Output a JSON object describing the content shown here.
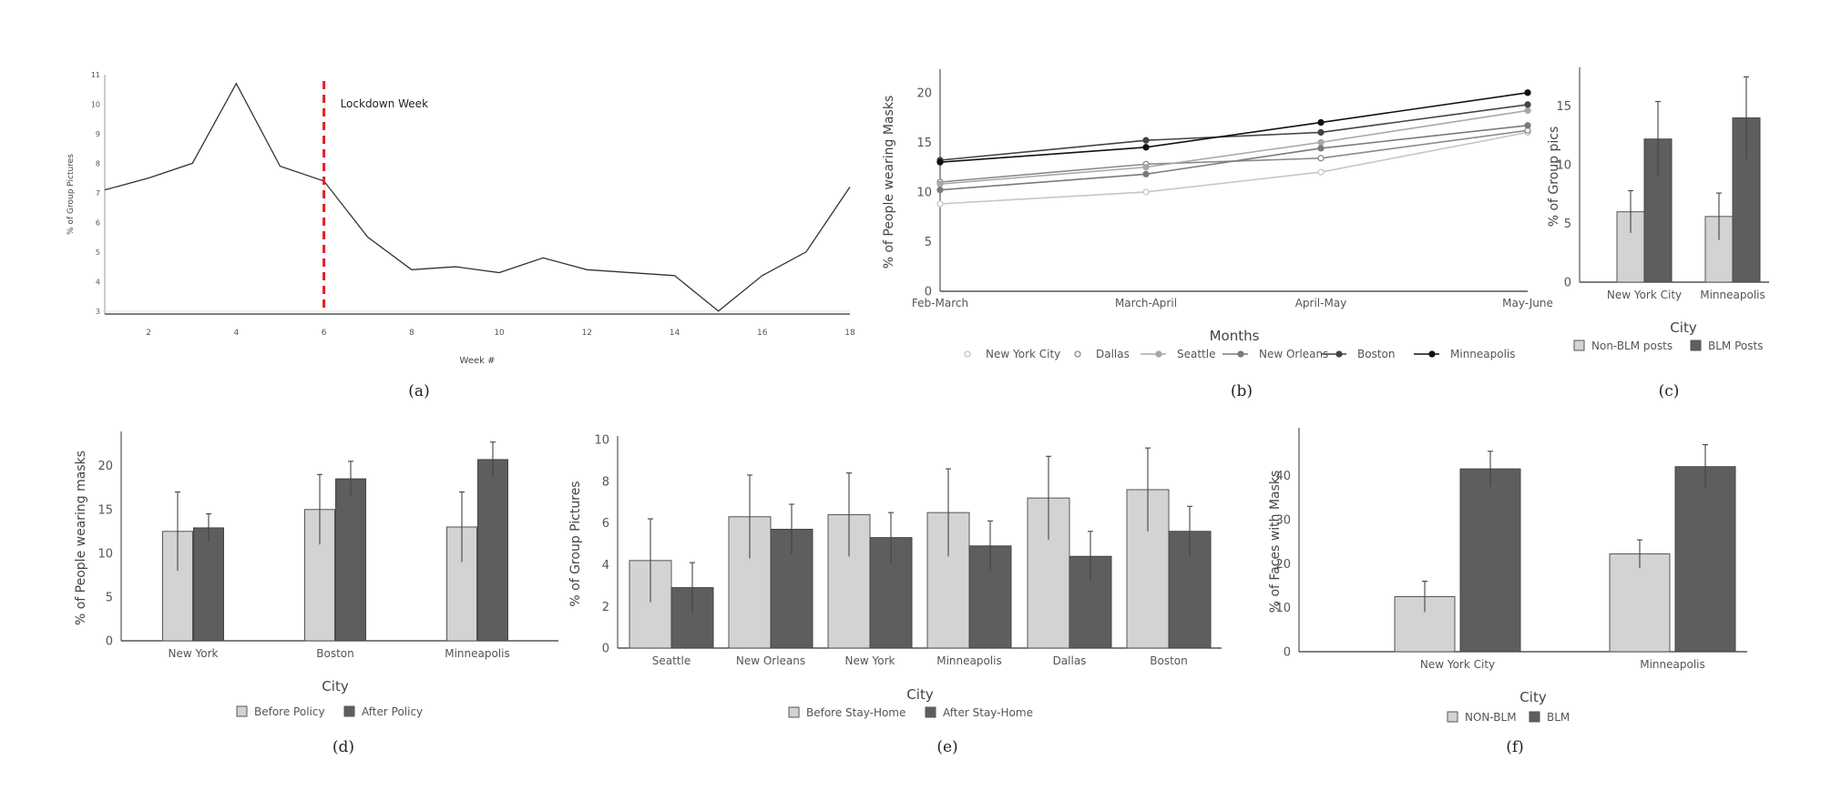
{
  "colors": {
    "light_bar": "#d3d3d3",
    "dark_bar": "#5e5e5e",
    "axis": "#333333",
    "line": "#333333",
    "lockdown": "#e0202a",
    "error": "#444444"
  },
  "chart_data": [
    {
      "id": "a",
      "caption": "(a)",
      "type": "line",
      "title": "",
      "xlabel": "Week #",
      "ylabel": "% of Group Pictures",
      "xlim": [
        1,
        18
      ],
      "ylim": [
        2.9,
        11
      ],
      "xticks": [
        2,
        4,
        6,
        8,
        10,
        12,
        14,
        16,
        18
      ],
      "yticks": [
        3,
        4,
        5,
        6,
        7,
        8,
        9,
        10,
        11
      ],
      "x": [
        1,
        2,
        3,
        4,
        5,
        6,
        7,
        8,
        9,
        10,
        11,
        12,
        13,
        14,
        15,
        16,
        17,
        18
      ],
      "values": [
        7.1,
        7.5,
        8.0,
        10.7,
        7.9,
        7.4,
        5.5,
        4.4,
        4.5,
        4.3,
        4.8,
        4.4,
        4.3,
        4.2,
        3.0,
        4.2,
        5.0,
        7.2
      ],
      "annotation": {
        "x": 6,
        "label": "Lockdown Week"
      },
      "grid": false
    },
    {
      "id": "b",
      "caption": "(b)",
      "type": "line",
      "title": "",
      "xlabel": "Months",
      "ylabel": "% of People wearing Masks",
      "ylim": [
        0,
        22
      ],
      "yticks": [
        0,
        5,
        10,
        15,
        20
      ],
      "categories": [
        "Feb-March",
        "March-April",
        "April-May",
        "May-June"
      ],
      "legend_position": "bottom",
      "series": [
        {
          "name": "New York City",
          "values": [
            8.8,
            10.0,
            12.0,
            16.0
          ],
          "color": "#c9c3cc",
          "marker": "hollow"
        },
        {
          "name": "Dallas",
          "values": [
            11.0,
            12.8,
            13.4,
            16.2
          ],
          "color": "#8a8a8a",
          "marker": "open"
        },
        {
          "name": "Seattle",
          "values": [
            10.8,
            12.5,
            15.0,
            18.2
          ],
          "color": "#a8a8a8",
          "marker": "filled"
        },
        {
          "name": "New Orleans",
          "values": [
            10.2,
            11.8,
            14.4,
            16.7
          ],
          "color": "#7a7a7a",
          "marker": "filled"
        },
        {
          "name": "Boston",
          "values": [
            13.2,
            15.2,
            16.0,
            18.8
          ],
          "color": "#444444",
          "marker": "filled"
        },
        {
          "name": "Minneapolis",
          "values": [
            13.0,
            14.5,
            17.0,
            20.0
          ],
          "color": "#111111",
          "marker": "filled"
        }
      ]
    },
    {
      "id": "c",
      "caption": "(c)",
      "type": "bar",
      "title": "",
      "xlabel": "City",
      "ylabel": "% of Group pics",
      "ylim": [
        0,
        18
      ],
      "yticks": [
        0,
        5,
        10,
        15
      ],
      "categories": [
        "New York City",
        "Minneapolis"
      ],
      "legend_position": "bottom",
      "series": [
        {
          "name": "Non-BLM posts",
          "values": [
            6.0,
            5.6
          ],
          "err": [
            1.8,
            2.0
          ]
        },
        {
          "name": "BLM Posts",
          "values": [
            12.2,
            14.0
          ],
          "err": [
            3.2,
            3.5
          ]
        }
      ]
    },
    {
      "id": "d",
      "caption": "(d)",
      "type": "bar",
      "title": "",
      "xlabel": "City",
      "ylabel": "% of People wearing masks",
      "ylim": [
        0,
        23.5
      ],
      "yticks": [
        0,
        5,
        10,
        15,
        20
      ],
      "categories": [
        "New York",
        "Boston",
        "Minneapolis"
      ],
      "legend_position": "bottom",
      "series": [
        {
          "name": "Before Policy",
          "values": [
            12.5,
            15.0,
            13.0
          ],
          "err": [
            4.5,
            4.0,
            4.0
          ]
        },
        {
          "name": "After Policy",
          "values": [
            12.9,
            18.5,
            20.7
          ],
          "err": [
            1.6,
            2.0,
            2.0
          ]
        }
      ]
    },
    {
      "id": "e",
      "caption": "(e)",
      "type": "bar",
      "title": "",
      "xlabel": "City",
      "ylabel": "% of Group Pictures",
      "ylim": [
        0,
        10
      ],
      "yticks": [
        0,
        2,
        4,
        6,
        8,
        10
      ],
      "categories": [
        "Seattle",
        "New Orleans",
        "New York",
        "Minneapolis",
        "Dallas",
        "Boston"
      ],
      "legend_position": "bottom",
      "series": [
        {
          "name": "Before Stay-Home",
          "values": [
            4.2,
            6.3,
            6.4,
            6.5,
            7.2,
            7.6
          ],
          "err": [
            2.0,
            2.0,
            2.0,
            2.1,
            2.0,
            2.0
          ]
        },
        {
          "name": "After Stay-Home",
          "values": [
            2.9,
            5.7,
            5.3,
            4.9,
            4.4,
            5.6
          ],
          "err": [
            1.2,
            1.2,
            1.2,
            1.2,
            1.2,
            1.2
          ]
        }
      ]
    },
    {
      "id": "f",
      "caption": "(f)",
      "type": "bar",
      "title": "",
      "xlabel": "City",
      "ylabel": "% of Faces with Masks",
      "ylim": [
        0,
        50
      ],
      "yticks": [
        0,
        10,
        20,
        30,
        40
      ],
      "categories": [
        "New York City",
        "Minneapolis"
      ],
      "legend_position": "bottom",
      "series": [
        {
          "name": "NON-BLM",
          "values": [
            12.5,
            22.2
          ],
          "err": [
            3.5,
            3.2
          ]
        },
        {
          "name": "BLM",
          "values": [
            41.5,
            42.0
          ],
          "err": [
            4.0,
            5.0
          ]
        }
      ]
    }
  ]
}
